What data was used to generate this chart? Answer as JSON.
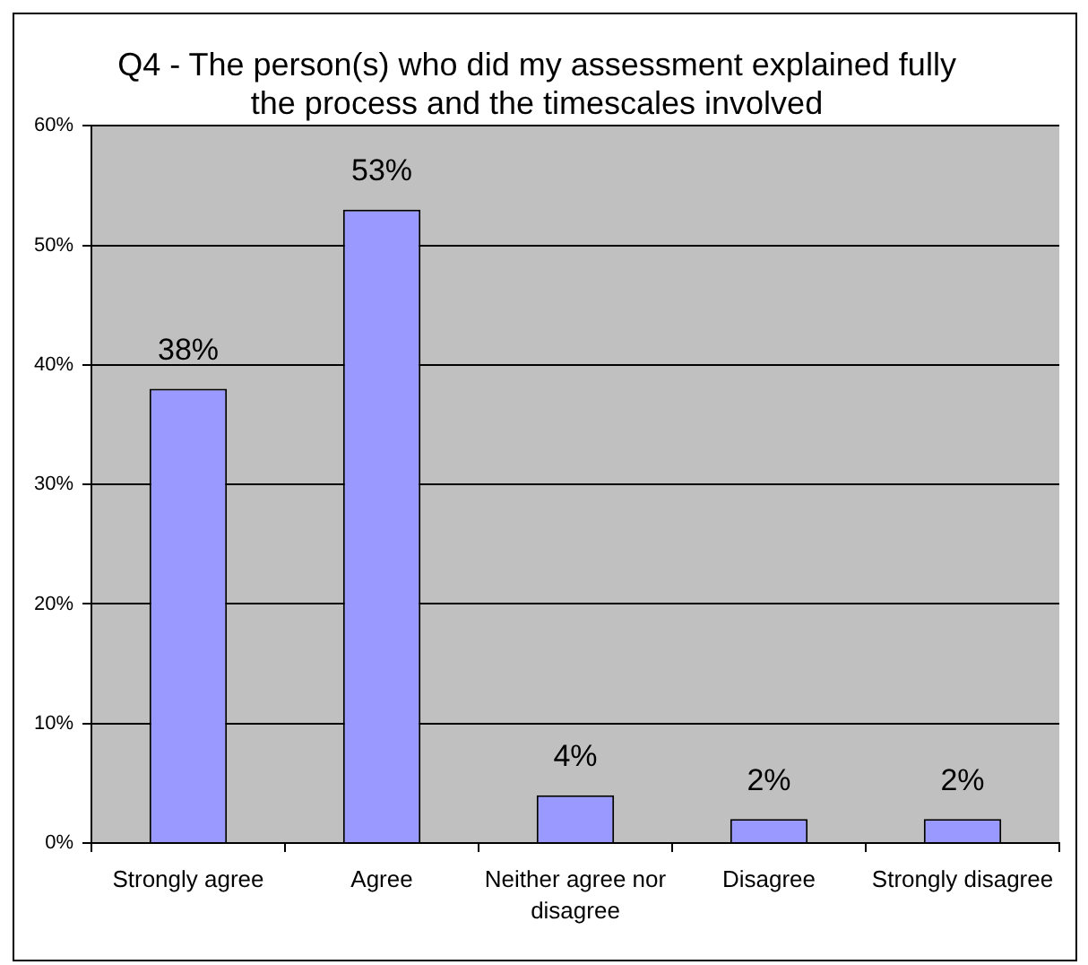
{
  "chart_data": {
    "type": "bar",
    "title": "Q4 - The person(s) who did my assessment explained fully the process and the timescales involved",
    "categories": [
      "Strongly agree",
      "Agree",
      "Neither agree nor disagree",
      "Disagree",
      "Strongly disagree"
    ],
    "values": [
      38,
      53,
      4,
      2,
      2
    ],
    "color": "#9999ff",
    "value_labels": [
      "38%",
      "53%",
      "4%",
      "2%",
      "2%"
    ],
    "ylim": [
      0,
      60
    ],
    "yticks": [
      {
        "value": 0,
        "label": "0%"
      },
      {
        "value": 10,
        "label": "10%"
      },
      {
        "value": 20,
        "label": "20%"
      },
      {
        "value": 30,
        "label": "30%"
      },
      {
        "value": 40,
        "label": "40%"
      },
      {
        "value": 50,
        "label": "50%"
      },
      {
        "value": 60,
        "label": "60%"
      }
    ],
    "grid": "y"
  }
}
